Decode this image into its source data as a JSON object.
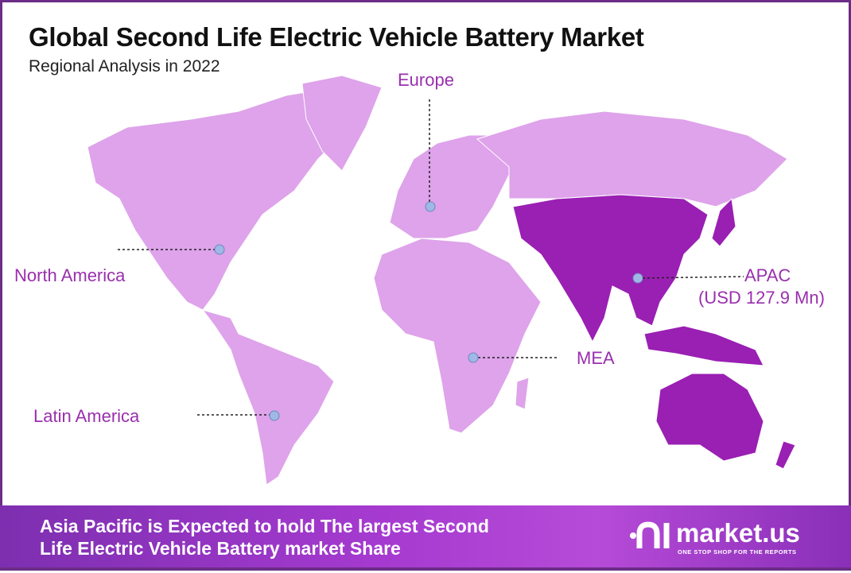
{
  "header": {
    "title": "Global Second Life Electric Vehicle Battery Market",
    "subtitle": "Regional Analysis in 2022"
  },
  "map": {
    "highlight_region": "APAC",
    "colors": {
      "base": "#dea3ea",
      "highlight": "#9a1fb3",
      "marker": "#9fb8e6",
      "label": "#9a2fae",
      "border": "#6b2d86"
    },
    "regions": [
      {
        "name": "Europe",
        "label": "Europe"
      },
      {
        "name": "North America",
        "label": "North America"
      },
      {
        "name": "APAC",
        "label": "APAC",
        "value": "(USD 127.9 Mn)"
      },
      {
        "name": "MEA",
        "label": "MEA"
      },
      {
        "name": "Latin America",
        "label": "Latin America"
      }
    ]
  },
  "banner": {
    "line1": "Asia Pacific is Expected to hold The largest Second",
    "line2": "Life Electric Vehicle Battery market Share"
  },
  "logo": {
    "name": "market.us",
    "tagline": "ONE STOP SHOP FOR THE REPORTS"
  }
}
